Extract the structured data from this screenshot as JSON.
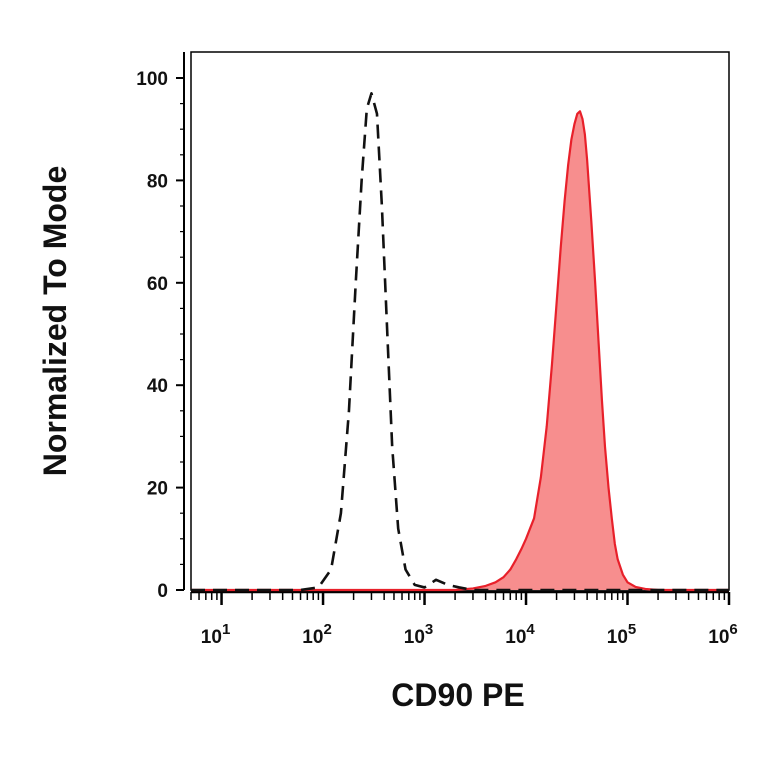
{
  "colors": {
    "stained_fill": "#f78e8e",
    "stained_line": "#e8202a",
    "control_line": "#111111",
    "axis": "#000000"
  },
  "chart_data": {
    "type": "area",
    "scale_x": "log",
    "grid": false,
    "xlabel": "CD90 PE",
    "ylabel": "Normalized To Mode",
    "xlim": [
      5,
      1000000
    ],
    "ylim": [
      0,
      100
    ],
    "x_ticks": [
      {
        "value": 10,
        "base": "10",
        "exp": "1"
      },
      {
        "value": 100,
        "base": "10",
        "exp": "2"
      },
      {
        "value": 1000,
        "base": "10",
        "exp": "3"
      },
      {
        "value": 10000,
        "base": "10",
        "exp": "4"
      },
      {
        "value": 100000,
        "base": "10",
        "exp": "5"
      },
      {
        "value": 1000000,
        "base": "10",
        "exp": "6"
      }
    ],
    "y_ticks": [
      0,
      20,
      40,
      60,
      80,
      100
    ],
    "series": [
      {
        "style": "dashed",
        "color": "#111111",
        "x": [
          5,
          60,
          90,
          120,
          150,
          180,
          210,
          240,
          270,
          300,
          340,
          380,
          430,
          480,
          550,
          650,
          800,
          1000,
          1300,
          1700,
          2200,
          3000,
          5000,
          10000,
          100000,
          1000000
        ],
        "y": [
          0,
          0,
          0.5,
          4,
          15,
          35,
          60,
          80,
          94,
          97,
          93,
          75,
          50,
          28,
          12,
          4,
          1,
          0.5,
          2,
          1,
          0.5,
          0,
          0,
          0,
          0,
          0
        ]
      },
      {
        "style": "filled",
        "color": "#e8202a",
        "fill": "#f78e8e",
        "x": [
          5,
          2000,
          3000,
          4000,
          5000,
          6000,
          7000,
          8000,
          9000,
          10000,
          12000,
          14000,
          16000,
          18000,
          20000,
          22000,
          24000,
          26000,
          28000,
          30000,
          32000,
          34000,
          36000,
          38000,
          40000,
          44000,
          48000,
          52000,
          56000,
          60000,
          65000,
          70000,
          75000,
          80000,
          90000,
          100000,
          120000,
          150000,
          200000,
          1000000
        ],
        "y": [
          0,
          0,
          0.3,
          0.8,
          1.5,
          2.5,
          4,
          6,
          8,
          10,
          14,
          22,
          32,
          44,
          56,
          67,
          76,
          83,
          88,
          91,
          93,
          93.5,
          92,
          89,
          84,
          72,
          60,
          48,
          37,
          28,
          20,
          14,
          9,
          6,
          3,
          1.5,
          0.6,
          0.2,
          0,
          0
        ]
      }
    ]
  }
}
